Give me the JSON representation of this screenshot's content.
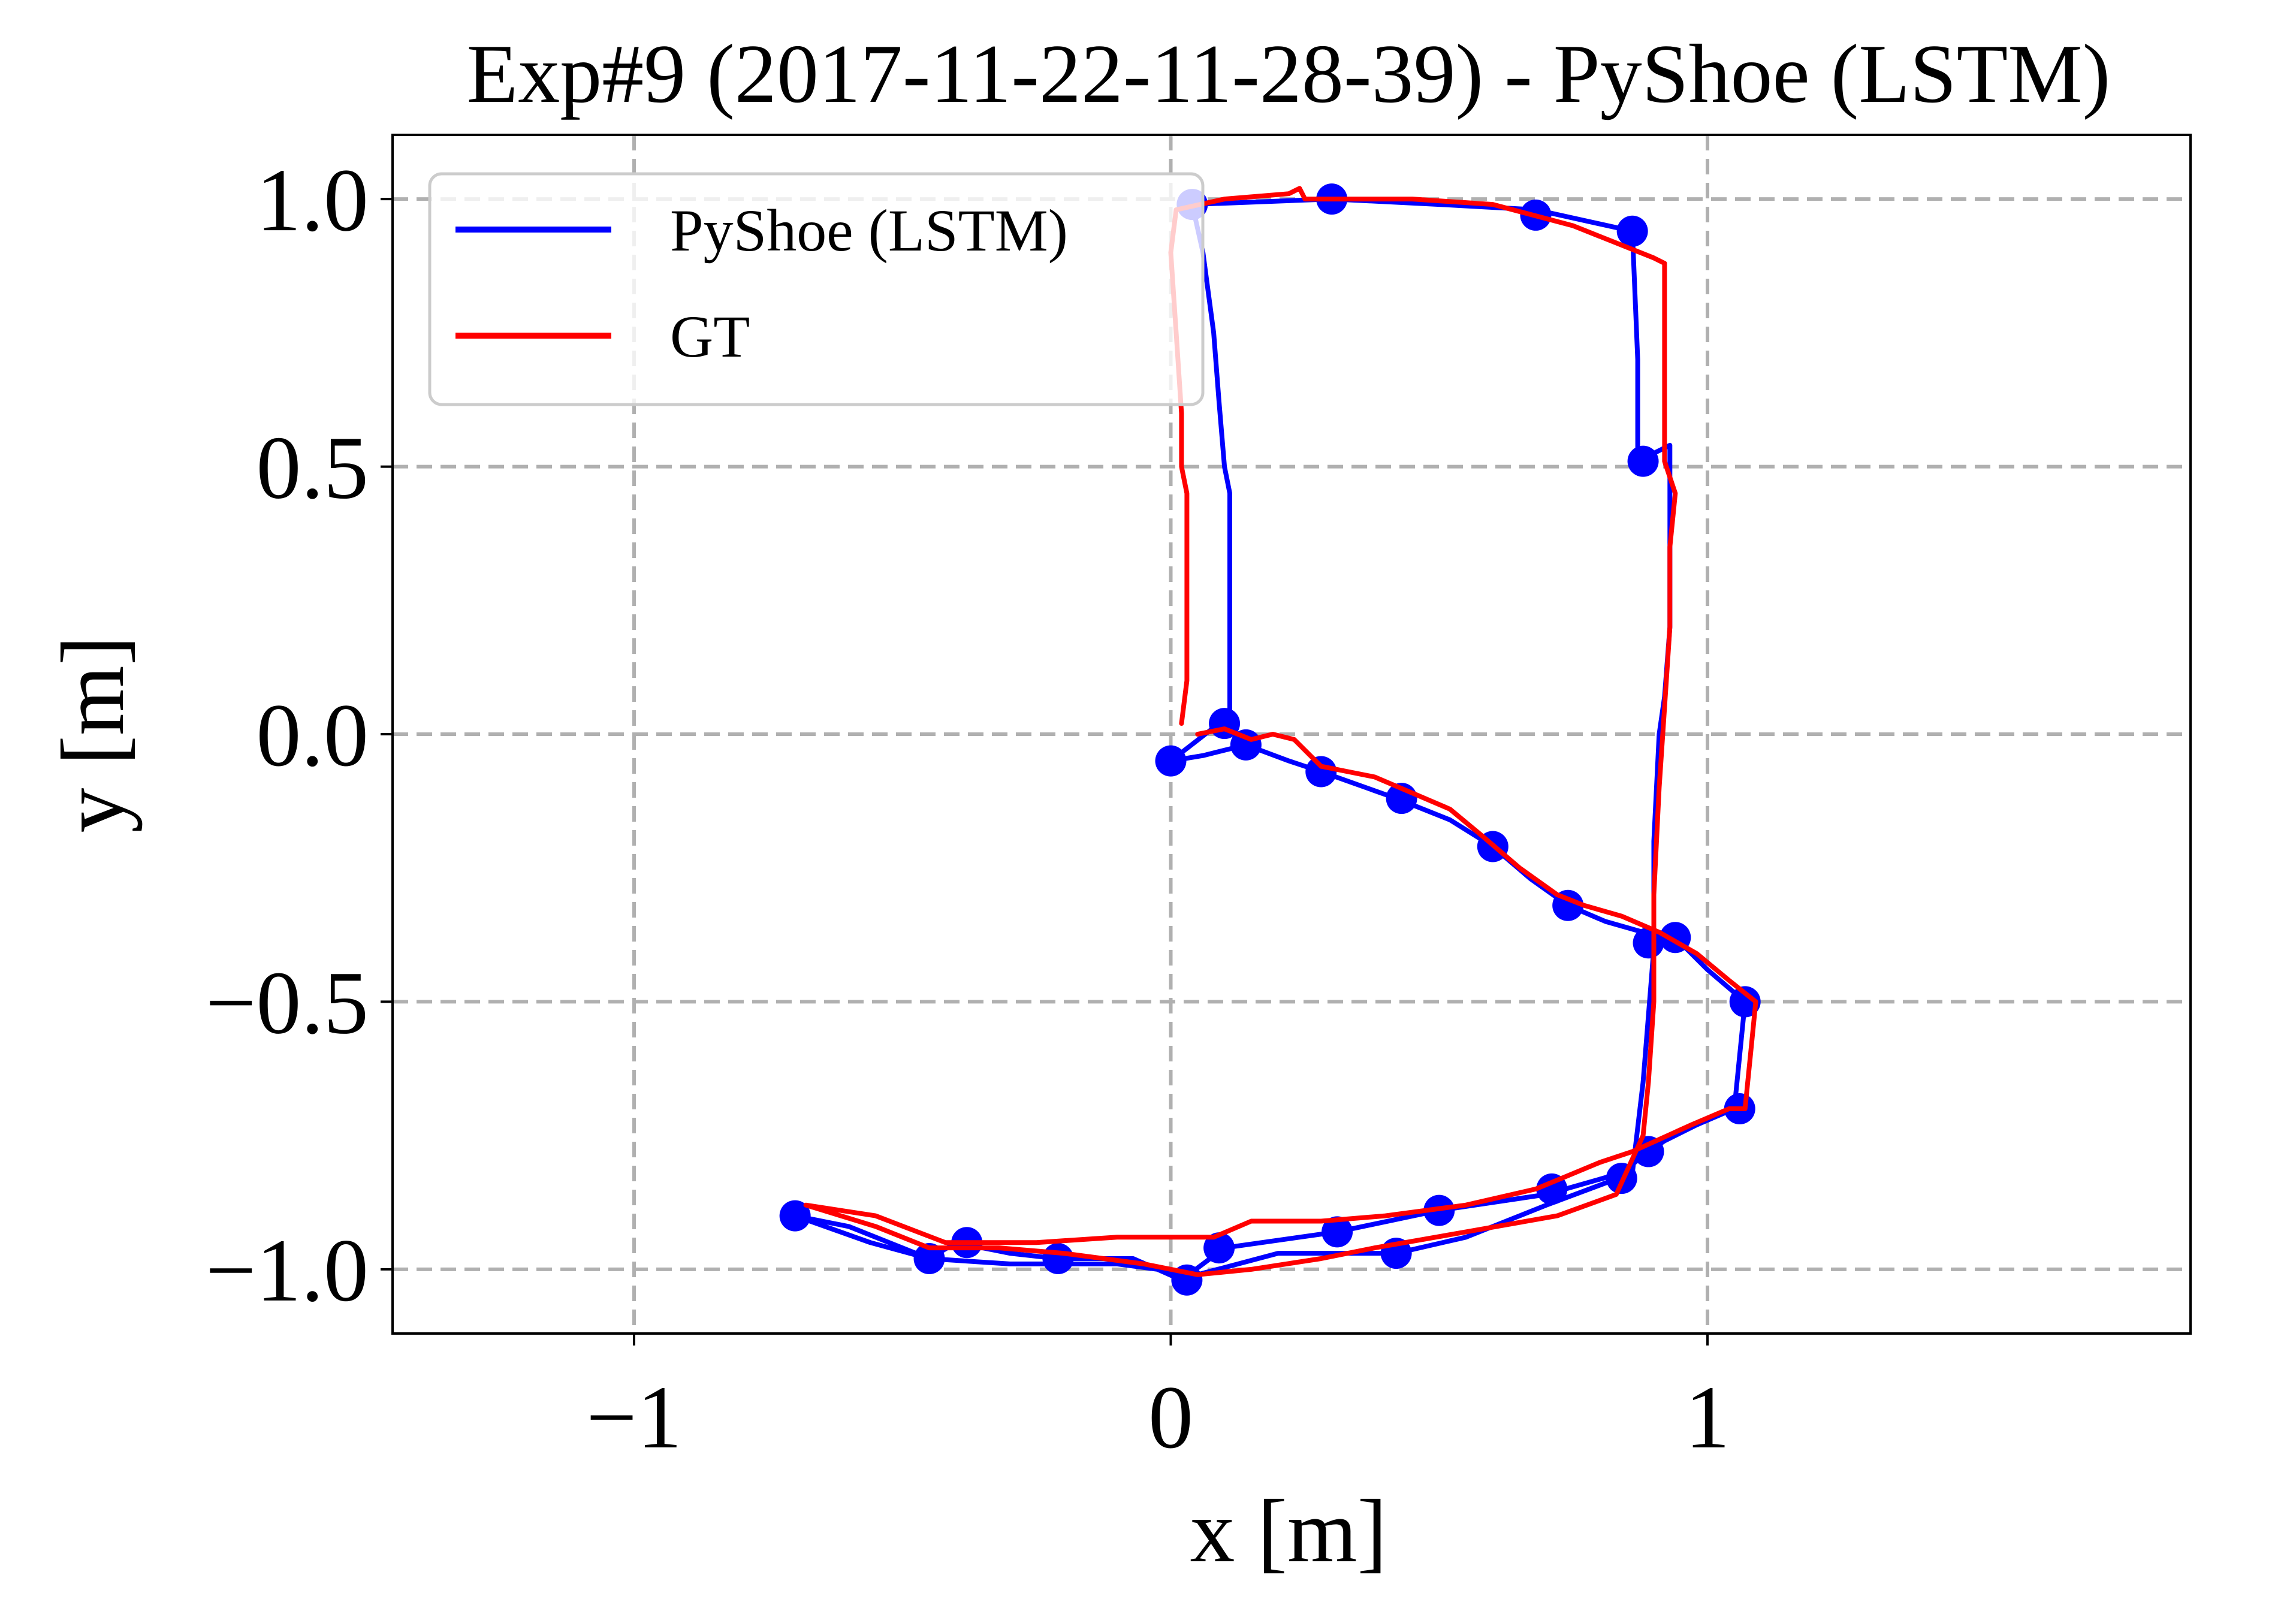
{
  "chart_data": {
    "type": "line",
    "title": "Exp#9 (2017-11-22-11-28-39) - PyShoe (LSTM)",
    "xlabel": "x [m]",
    "ylabel": "y [m]",
    "xlim": [
      -1.45,
      1.9
    ],
    "ylim": [
      -1.12,
      1.12
    ],
    "x_ticks": [
      -1,
      0,
      1
    ],
    "x_tick_labels": [
      "−1",
      "0",
      "1"
    ],
    "y_ticks": [
      1.0,
      0.5,
      0.0,
      -0.5,
      -1.0
    ],
    "y_tick_labels": [
      "1.0",
      "0.5",
      "0.0",
      "−0.5",
      "−1.0"
    ],
    "grid": true,
    "legend_position": "top-left",
    "series": [
      {
        "name": "PyShoe (LSTM)",
        "color": "#0000ff",
        "markers": "dots",
        "points": [
          [
            0.93,
            0.54
          ],
          [
            0.87,
            0.51
          ],
          [
            0.87,
            0.7
          ],
          [
            0.86,
            0.94
          ],
          [
            0.68,
            0.98
          ],
          [
            0.5,
            0.99
          ],
          [
            0.3,
            1.0
          ],
          [
            0.04,
            0.99
          ],
          [
            0.06,
            0.9
          ],
          [
            0.08,
            0.75
          ],
          [
            0.09,
            0.62
          ],
          [
            0.1,
            0.5
          ],
          [
            0.11,
            0.45
          ],
          [
            0.11,
            0.3
          ],
          [
            0.11,
            0.1
          ],
          [
            0.11,
            0.02
          ],
          [
            0.09,
            0.02
          ],
          [
            0.0,
            -0.05
          ],
          [
            0.06,
            -0.04
          ],
          [
            0.14,
            -0.02
          ],
          [
            0.22,
            -0.05
          ],
          [
            0.28,
            -0.07
          ],
          [
            0.42,
            -0.12
          ],
          [
            0.52,
            -0.16
          ],
          [
            0.6,
            -0.21
          ],
          [
            0.67,
            -0.27
          ],
          [
            0.74,
            -0.32
          ],
          [
            0.81,
            -0.35
          ],
          [
            0.88,
            -0.37
          ],
          [
            0.94,
            -0.38
          ],
          [
            1.0,
            -0.44
          ],
          [
            1.07,
            -0.5
          ],
          [
            1.05,
            -0.7
          ],
          [
            0.98,
            -0.73
          ],
          [
            0.92,
            -0.76
          ],
          [
            0.89,
            -0.78
          ],
          [
            0.84,
            -0.82
          ],
          [
            0.7,
            -0.86
          ],
          [
            0.5,
            -0.89
          ],
          [
            0.31,
            -0.93
          ],
          [
            0.1,
            -0.96
          ],
          [
            0.02,
            -1.02
          ],
          [
            -0.07,
            -0.98
          ],
          [
            -0.21,
            -0.98
          ],
          [
            -0.3,
            -0.97
          ],
          [
            -0.4,
            -0.95
          ],
          [
            -0.45,
            -0.98
          ],
          [
            -0.56,
            -0.95
          ],
          [
            -0.7,
            -0.9
          ],
          [
            -0.6,
            -0.92
          ],
          [
            -0.45,
            -0.98
          ],
          [
            -0.3,
            -0.99
          ],
          [
            -0.1,
            -0.99
          ],
          [
            0.05,
            -1.01
          ],
          [
            0.2,
            -0.97
          ],
          [
            0.42,
            -0.97
          ],
          [
            0.55,
            -0.94
          ],
          [
            0.7,
            -0.88
          ],
          [
            0.86,
            -0.82
          ],
          [
            0.88,
            -0.65
          ],
          [
            0.9,
            -0.4
          ],
          [
            0.9,
            -0.2
          ],
          [
            0.91,
            0.0
          ],
          [
            0.92,
            0.07
          ],
          [
            0.93,
            0.2
          ],
          [
            0.93,
            0.4
          ],
          [
            0.93,
            0.54
          ]
        ],
        "dot_markers": [
          [
            0.04,
            0.99
          ],
          [
            0.3,
            1.0
          ],
          [
            0.68,
            0.97
          ],
          [
            0.86,
            0.94
          ],
          [
            0.88,
            0.51
          ],
          [
            0.1,
            0.02
          ],
          [
            0.0,
            -0.05
          ],
          [
            0.14,
            -0.02
          ],
          [
            0.28,
            -0.07
          ],
          [
            0.43,
            -0.12
          ],
          [
            0.6,
            -0.21
          ],
          [
            0.74,
            -0.32
          ],
          [
            0.89,
            -0.39
          ],
          [
            0.94,
            -0.38
          ],
          [
            1.07,
            -0.5
          ],
          [
            1.06,
            -0.7
          ],
          [
            0.89,
            -0.78
          ],
          [
            0.84,
            -0.83
          ],
          [
            0.71,
            -0.85
          ],
          [
            0.5,
            -0.89
          ],
          [
            0.31,
            -0.93
          ],
          [
            0.42,
            -0.97
          ],
          [
            0.09,
            -0.96
          ],
          [
            0.03,
            -1.02
          ],
          [
            -0.21,
            -0.98
          ],
          [
            -0.38,
            -0.95
          ],
          [
            -0.45,
            -0.98
          ],
          [
            -0.7,
            -0.9
          ]
        ]
      },
      {
        "name": "GT",
        "color": "#ff0000",
        "points": [
          [
            0.02,
            0.02
          ],
          [
            0.03,
            0.1
          ],
          [
            0.03,
            0.3
          ],
          [
            0.03,
            0.45
          ],
          [
            0.02,
            0.5
          ],
          [
            0.02,
            0.6
          ],
          [
            0.01,
            0.75
          ],
          [
            0.0,
            0.9
          ],
          [
            0.01,
            0.98
          ],
          [
            0.1,
            1.0
          ],
          [
            0.22,
            1.01
          ],
          [
            0.24,
            1.02
          ],
          [
            0.25,
            1.0
          ],
          [
            0.45,
            1.0
          ],
          [
            0.6,
            0.99
          ],
          [
            0.75,
            0.95
          ],
          [
            0.85,
            0.91
          ],
          [
            0.9,
            0.89
          ],
          [
            0.92,
            0.88
          ],
          [
            0.92,
            0.7
          ],
          [
            0.92,
            0.51
          ],
          [
            0.94,
            0.45
          ],
          [
            0.93,
            0.35
          ],
          [
            0.93,
            0.2
          ],
          [
            0.92,
            0.05
          ],
          [
            0.91,
            -0.1
          ],
          [
            0.9,
            -0.3
          ],
          [
            0.9,
            -0.5
          ],
          [
            0.89,
            -0.65
          ],
          [
            0.88,
            -0.75
          ],
          [
            0.83,
            -0.86
          ],
          [
            0.72,
            -0.9
          ],
          [
            0.55,
            -0.93
          ],
          [
            0.38,
            -0.96
          ],
          [
            0.28,
            -0.98
          ],
          [
            0.15,
            -1.0
          ],
          [
            0.05,
            -1.01
          ],
          [
            -0.05,
            -0.99
          ],
          [
            -0.2,
            -0.97
          ],
          [
            -0.32,
            -0.96
          ],
          [
            -0.45,
            -0.96
          ],
          [
            -0.55,
            -0.92
          ],
          [
            -0.68,
            -0.88
          ],
          [
            -0.55,
            -0.9
          ],
          [
            -0.42,
            -0.95
          ],
          [
            -0.25,
            -0.95
          ],
          [
            -0.1,
            -0.94
          ],
          [
            0.0,
            -0.94
          ],
          [
            0.08,
            -0.94
          ],
          [
            0.15,
            -0.91
          ],
          [
            0.28,
            -0.91
          ],
          [
            0.4,
            -0.9
          ],
          [
            0.55,
            -0.88
          ],
          [
            0.68,
            -0.85
          ],
          [
            0.8,
            -0.8
          ],
          [
            0.86,
            -0.78
          ],
          [
            0.97,
            -0.73
          ],
          [
            1.04,
            -0.7
          ],
          [
            1.07,
            -0.7
          ],
          [
            1.08,
            -0.6
          ],
          [
            1.09,
            -0.5
          ],
          [
            1.04,
            -0.46
          ],
          [
            0.98,
            -0.41
          ],
          [
            0.91,
            -0.37
          ],
          [
            0.84,
            -0.34
          ],
          [
            0.77,
            -0.32
          ],
          [
            0.72,
            -0.3
          ],
          [
            0.65,
            -0.25
          ],
          [
            0.58,
            -0.19
          ],
          [
            0.52,
            -0.14
          ],
          [
            0.45,
            -0.11
          ],
          [
            0.38,
            -0.08
          ],
          [
            0.33,
            -0.07
          ],
          [
            0.28,
            -0.06
          ],
          [
            0.23,
            -0.01
          ],
          [
            0.19,
            0.0
          ],
          [
            0.15,
            -0.01
          ],
          [
            0.1,
            0.01
          ],
          [
            0.05,
            0.0
          ]
        ]
      }
    ]
  }
}
